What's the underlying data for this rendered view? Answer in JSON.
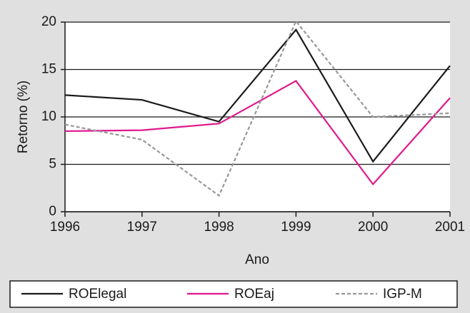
{
  "chart_data": {
    "type": "line",
    "xlabel": "Ano",
    "ylabel": "Retorno (%)",
    "x": [
      1996,
      1997,
      1998,
      1999,
      2000,
      2001
    ],
    "xlim": [
      1996,
      2001
    ],
    "xticks": [
      1996,
      1997,
      1998,
      1999,
      2000,
      2001
    ],
    "ylim": [
      0,
      20
    ],
    "yticks": [
      0,
      5,
      10,
      15,
      20
    ],
    "grid": true,
    "legend": "bottom",
    "series": [
      {
        "name": "ROElegal",
        "color": "#1a1a1a",
        "values": [
          12.3,
          11.8,
          9.5,
          19.2,
          5.3,
          15.4
        ]
      },
      {
        "name": "ROEaj",
        "color": "#e0198c",
        "values": [
          8.5,
          8.6,
          9.3,
          13.8,
          2.9,
          12.0
        ]
      },
      {
        "name": "IGP-M",
        "color": "#999999",
        "dashed": true,
        "values": [
          9.2,
          7.6,
          1.7,
          20.1,
          10.0,
          10.4
        ]
      }
    ]
  }
}
